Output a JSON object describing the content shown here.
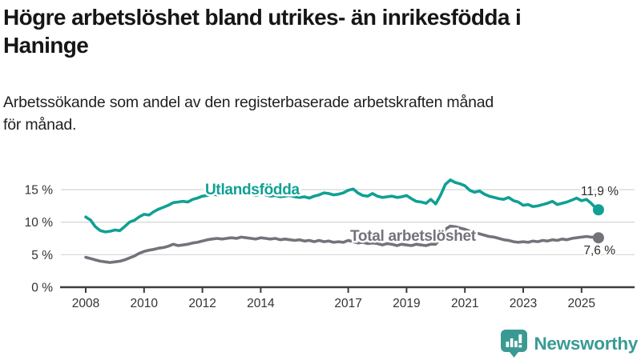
{
  "title_lines": [
    "Högre arbetslöshet bland utrikes- än inrikesfödda i",
    "Haninge"
  ],
  "subtitle_lines": [
    "Arbetssökande som andel av den registerbaserade arbetskraften månad",
    "för månad."
  ],
  "logo": {
    "brand": "Newsworthy",
    "icon": "newsworthy-bars-bubble-icon",
    "color": "#3a9a93"
  },
  "colors": {
    "series_foreign": "#10a094",
    "series_total": "#73737b",
    "gridline": "#d9d9d9",
    "axis": "#3d3d3d",
    "axis_text": "#333333",
    "value_label": "#2b2b2b"
  },
  "chart_data": {
    "type": "line",
    "title": "Högre arbetslöshet bland utrikes- än inrikesfödda i Haninge",
    "subtitle": "Arbetssökande som andel av den registerbaserade arbetskraften månad för månad.",
    "x_unit": "year (monthly data)",
    "xlim": [
      2007.6,
      2026.3
    ],
    "ylim": [
      0,
      17.5
    ],
    "grid": "horizontal",
    "legend_position": "inline-labels",
    "yticks": [
      {
        "value": 0,
        "label": "0 %"
      },
      {
        "value": 5,
        "label": "5 %"
      },
      {
        "value": 10,
        "label": "10 %"
      },
      {
        "value": 15,
        "label": "15 %"
      }
    ],
    "xticks": [
      {
        "value": 2008,
        "label": "2008"
      },
      {
        "value": 2010,
        "label": "2010"
      },
      {
        "value": 2012,
        "label": "2012"
      },
      {
        "value": 2014,
        "label": "2014"
      },
      {
        "value": 2017,
        "label": "2017"
      },
      {
        "value": 2019,
        "label": "2019"
      },
      {
        "value": 2021,
        "label": "2021"
      },
      {
        "value": 2023,
        "label": "2023"
      },
      {
        "value": 2025,
        "label": "2025"
      }
    ],
    "series": [
      {
        "name": "Utlandsfödda",
        "color": "#10a094",
        "end_value_label": "11,9 %",
        "points": [
          [
            2008.0,
            10.8
          ],
          [
            2008.17,
            10.3
          ],
          [
            2008.33,
            9.3
          ],
          [
            2008.5,
            8.7
          ],
          [
            2008.67,
            8.5
          ],
          [
            2008.83,
            8.6
          ],
          [
            2009.0,
            8.8
          ],
          [
            2009.17,
            8.7
          ],
          [
            2009.33,
            9.3
          ],
          [
            2009.5,
            10.0
          ],
          [
            2009.67,
            10.3
          ],
          [
            2009.83,
            10.8
          ],
          [
            2010.0,
            11.2
          ],
          [
            2010.17,
            11.1
          ],
          [
            2010.33,
            11.6
          ],
          [
            2010.5,
            12.0
          ],
          [
            2010.67,
            12.3
          ],
          [
            2010.83,
            12.6
          ],
          [
            2011.0,
            13.0
          ],
          [
            2011.17,
            13.1
          ],
          [
            2011.33,
            13.2
          ],
          [
            2011.5,
            13.1
          ],
          [
            2011.67,
            13.5
          ],
          [
            2011.83,
            13.7
          ],
          [
            2012.0,
            14.0
          ],
          [
            2012.17,
            14.1
          ],
          [
            2012.33,
            14.3
          ],
          [
            2012.5,
            14.2
          ],
          [
            2012.67,
            14.4
          ],
          [
            2012.83,
            14.3
          ],
          [
            2013.0,
            14.5
          ],
          [
            2013.17,
            14.3
          ],
          [
            2013.33,
            14.4
          ],
          [
            2013.5,
            14.2
          ],
          [
            2013.67,
            14.3
          ],
          [
            2013.83,
            14.1
          ],
          [
            2014.0,
            14.3
          ],
          [
            2014.17,
            14.2
          ],
          [
            2014.33,
            14.0
          ],
          [
            2014.5,
            14.1
          ],
          [
            2014.67,
            13.9
          ],
          [
            2014.83,
            14.0
          ],
          [
            2015.0,
            14.1
          ],
          [
            2015.17,
            13.9
          ],
          [
            2015.33,
            13.8
          ],
          [
            2015.5,
            13.9
          ],
          [
            2015.67,
            13.7
          ],
          [
            2015.83,
            14.0
          ],
          [
            2016.0,
            14.2
          ],
          [
            2016.17,
            14.5
          ],
          [
            2016.33,
            14.4
          ],
          [
            2016.5,
            14.2
          ],
          [
            2016.67,
            14.3
          ],
          [
            2016.83,
            14.5
          ],
          [
            2017.0,
            14.9
          ],
          [
            2017.17,
            15.1
          ],
          [
            2017.33,
            14.5
          ],
          [
            2017.5,
            14.1
          ],
          [
            2017.67,
            14.0
          ],
          [
            2017.83,
            14.4
          ],
          [
            2018.0,
            14.0
          ],
          [
            2018.17,
            13.8
          ],
          [
            2018.33,
            13.9
          ],
          [
            2018.5,
            14.0
          ],
          [
            2018.67,
            13.8
          ],
          [
            2018.83,
            13.9
          ],
          [
            2019.0,
            14.1
          ],
          [
            2019.17,
            13.6
          ],
          [
            2019.33,
            13.2
          ],
          [
            2019.5,
            13.1
          ],
          [
            2019.67,
            12.9
          ],
          [
            2019.83,
            13.5
          ],
          [
            2020.0,
            12.8
          ],
          [
            2020.17,
            14.2
          ],
          [
            2020.33,
            15.8
          ],
          [
            2020.5,
            16.5
          ],
          [
            2020.67,
            16.1
          ],
          [
            2020.83,
            15.9
          ],
          [
            2021.0,
            15.6
          ],
          [
            2021.17,
            14.9
          ],
          [
            2021.33,
            14.6
          ],
          [
            2021.5,
            14.8
          ],
          [
            2021.67,
            14.3
          ],
          [
            2021.83,
            14.0
          ],
          [
            2022.0,
            13.8
          ],
          [
            2022.17,
            13.6
          ],
          [
            2022.33,
            13.5
          ],
          [
            2022.5,
            13.8
          ],
          [
            2022.67,
            13.3
          ],
          [
            2022.83,
            13.1
          ],
          [
            2023.0,
            12.6
          ],
          [
            2023.17,
            12.7
          ],
          [
            2023.33,
            12.4
          ],
          [
            2023.5,
            12.5
          ],
          [
            2023.67,
            12.7
          ],
          [
            2023.83,
            12.9
          ],
          [
            2024.0,
            13.2
          ],
          [
            2024.17,
            12.7
          ],
          [
            2024.33,
            12.9
          ],
          [
            2024.5,
            13.1
          ],
          [
            2024.67,
            13.4
          ],
          [
            2024.83,
            13.7
          ],
          [
            2025.0,
            13.3
          ],
          [
            2025.17,
            13.5
          ],
          [
            2025.33,
            12.9
          ],
          [
            2025.5,
            12.1
          ],
          [
            2025.58,
            11.9
          ]
        ]
      },
      {
        "name": "Total arbetslöshet",
        "color": "#73737b",
        "end_value_label": "7,6 %",
        "points": [
          [
            2008.0,
            4.6
          ],
          [
            2008.17,
            4.4
          ],
          [
            2008.33,
            4.2
          ],
          [
            2008.5,
            4.0
          ],
          [
            2008.67,
            3.9
          ],
          [
            2008.83,
            3.8
          ],
          [
            2009.0,
            3.9
          ],
          [
            2009.17,
            4.0
          ],
          [
            2009.33,
            4.2
          ],
          [
            2009.5,
            4.5
          ],
          [
            2009.67,
            4.8
          ],
          [
            2009.83,
            5.2
          ],
          [
            2010.0,
            5.5
          ],
          [
            2010.17,
            5.7
          ],
          [
            2010.33,
            5.8
          ],
          [
            2010.5,
            6.0
          ],
          [
            2010.67,
            6.1
          ],
          [
            2010.83,
            6.3
          ],
          [
            2011.0,
            6.6
          ],
          [
            2011.17,
            6.4
          ],
          [
            2011.33,
            6.5
          ],
          [
            2011.5,
            6.6
          ],
          [
            2011.67,
            6.8
          ],
          [
            2011.83,
            6.9
          ],
          [
            2012.0,
            7.1
          ],
          [
            2012.17,
            7.3
          ],
          [
            2012.33,
            7.4
          ],
          [
            2012.5,
            7.5
          ],
          [
            2012.67,
            7.4
          ],
          [
            2012.83,
            7.5
          ],
          [
            2013.0,
            7.6
          ],
          [
            2013.17,
            7.5
          ],
          [
            2013.33,
            7.7
          ],
          [
            2013.5,
            7.6
          ],
          [
            2013.67,
            7.5
          ],
          [
            2013.83,
            7.4
          ],
          [
            2014.0,
            7.6
          ],
          [
            2014.17,
            7.5
          ],
          [
            2014.33,
            7.4
          ],
          [
            2014.5,
            7.5
          ],
          [
            2014.67,
            7.3
          ],
          [
            2014.83,
            7.4
          ],
          [
            2015.0,
            7.3
          ],
          [
            2015.17,
            7.2
          ],
          [
            2015.33,
            7.3
          ],
          [
            2015.5,
            7.1
          ],
          [
            2015.67,
            7.2
          ],
          [
            2015.83,
            7.0
          ],
          [
            2016.0,
            7.2
          ],
          [
            2016.17,
            7.0
          ],
          [
            2016.33,
            7.1
          ],
          [
            2016.5,
            6.9
          ],
          [
            2016.67,
            7.0
          ],
          [
            2016.83,
            6.9
          ],
          [
            2017.0,
            7.2
          ],
          [
            2017.17,
            7.0
          ],
          [
            2017.33,
            6.8
          ],
          [
            2017.5,
            6.9
          ],
          [
            2017.67,
            6.7
          ],
          [
            2017.83,
            6.8
          ],
          [
            2018.0,
            6.7
          ],
          [
            2018.17,
            6.5
          ],
          [
            2018.33,
            6.7
          ],
          [
            2018.5,
            6.6
          ],
          [
            2018.67,
            6.4
          ],
          [
            2018.83,
            6.6
          ],
          [
            2019.0,
            6.5
          ],
          [
            2019.17,
            6.4
          ],
          [
            2019.33,
            6.6
          ],
          [
            2019.5,
            6.5
          ],
          [
            2019.67,
            6.4
          ],
          [
            2019.83,
            6.6
          ],
          [
            2020.0,
            6.6
          ],
          [
            2020.17,
            7.6
          ],
          [
            2020.33,
            8.9
          ],
          [
            2020.5,
            9.4
          ],
          [
            2020.67,
            9.3
          ],
          [
            2020.83,
            9.1
          ],
          [
            2021.0,
            8.9
          ],
          [
            2021.17,
            8.6
          ],
          [
            2021.33,
            8.4
          ],
          [
            2021.5,
            8.2
          ],
          [
            2021.67,
            8.0
          ],
          [
            2021.83,
            7.8
          ],
          [
            2022.0,
            7.7
          ],
          [
            2022.17,
            7.5
          ],
          [
            2022.33,
            7.3
          ],
          [
            2022.5,
            7.2
          ],
          [
            2022.67,
            7.0
          ],
          [
            2022.83,
            6.9
          ],
          [
            2023.0,
            7.0
          ],
          [
            2023.17,
            6.9
          ],
          [
            2023.33,
            7.1
          ],
          [
            2023.5,
            7.0
          ],
          [
            2023.67,
            7.2
          ],
          [
            2023.83,
            7.1
          ],
          [
            2024.0,
            7.3
          ],
          [
            2024.17,
            7.2
          ],
          [
            2024.33,
            7.4
          ],
          [
            2024.5,
            7.3
          ],
          [
            2024.67,
            7.5
          ],
          [
            2024.83,
            7.6
          ],
          [
            2025.0,
            7.7
          ],
          [
            2025.17,
            7.8
          ],
          [
            2025.33,
            7.7
          ],
          [
            2025.5,
            7.7
          ],
          [
            2025.58,
            7.6
          ]
        ]
      }
    ]
  }
}
